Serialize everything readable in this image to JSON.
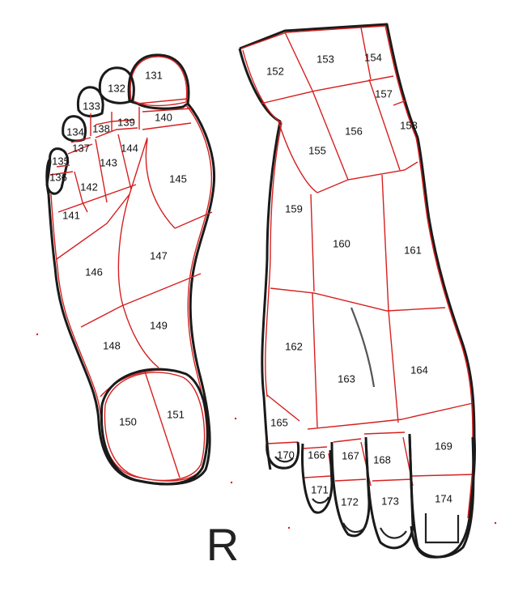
{
  "side_label": "R",
  "colors": {
    "outline": "#1a1a1a",
    "zone_line": "#d62020"
  },
  "sole": {
    "zones": [
      {
        "id": "131",
        "label": "131"
      },
      {
        "id": "132",
        "label": "132"
      },
      {
        "id": "133",
        "label": "133"
      },
      {
        "id": "134",
        "label": "134"
      },
      {
        "id": "135",
        "label": "135"
      },
      {
        "id": "136",
        "label": "136"
      },
      {
        "id": "137",
        "label": "137"
      },
      {
        "id": "138",
        "label": "138"
      },
      {
        "id": "139",
        "label": "139"
      },
      {
        "id": "140",
        "label": "140"
      },
      {
        "id": "141",
        "label": "141"
      },
      {
        "id": "142",
        "label": "142"
      },
      {
        "id": "143",
        "label": "143"
      },
      {
        "id": "144",
        "label": "144"
      },
      {
        "id": "145",
        "label": "145"
      },
      {
        "id": "146",
        "label": "146"
      },
      {
        "id": "147",
        "label": "147"
      },
      {
        "id": "148",
        "label": "148"
      },
      {
        "id": "149",
        "label": "149"
      },
      {
        "id": "150",
        "label": "150"
      },
      {
        "id": "151",
        "label": "151"
      }
    ]
  },
  "top": {
    "zones": [
      {
        "id": "152",
        "label": "152"
      },
      {
        "id": "153",
        "label": "153"
      },
      {
        "id": "154",
        "label": "154"
      },
      {
        "id": "155",
        "label": "155"
      },
      {
        "id": "156",
        "label": "156"
      },
      {
        "id": "157",
        "label": "157"
      },
      {
        "id": "158",
        "label": "158"
      },
      {
        "id": "159",
        "label": "159"
      },
      {
        "id": "160",
        "label": "160"
      },
      {
        "id": "161",
        "label": "161"
      },
      {
        "id": "162",
        "label": "162"
      },
      {
        "id": "163",
        "label": "163"
      },
      {
        "id": "164",
        "label": "164"
      },
      {
        "id": "165",
        "label": "165"
      },
      {
        "id": "166",
        "label": "166"
      },
      {
        "id": "167",
        "label": "167"
      },
      {
        "id": "168",
        "label": "168"
      },
      {
        "id": "169",
        "label": "169"
      },
      {
        "id": "170",
        "label": "170"
      },
      {
        "id": "171",
        "label": "171"
      },
      {
        "id": "172",
        "label": "172"
      },
      {
        "id": "173",
        "label": "173"
      },
      {
        "id": "174",
        "label": "174"
      }
    ]
  }
}
